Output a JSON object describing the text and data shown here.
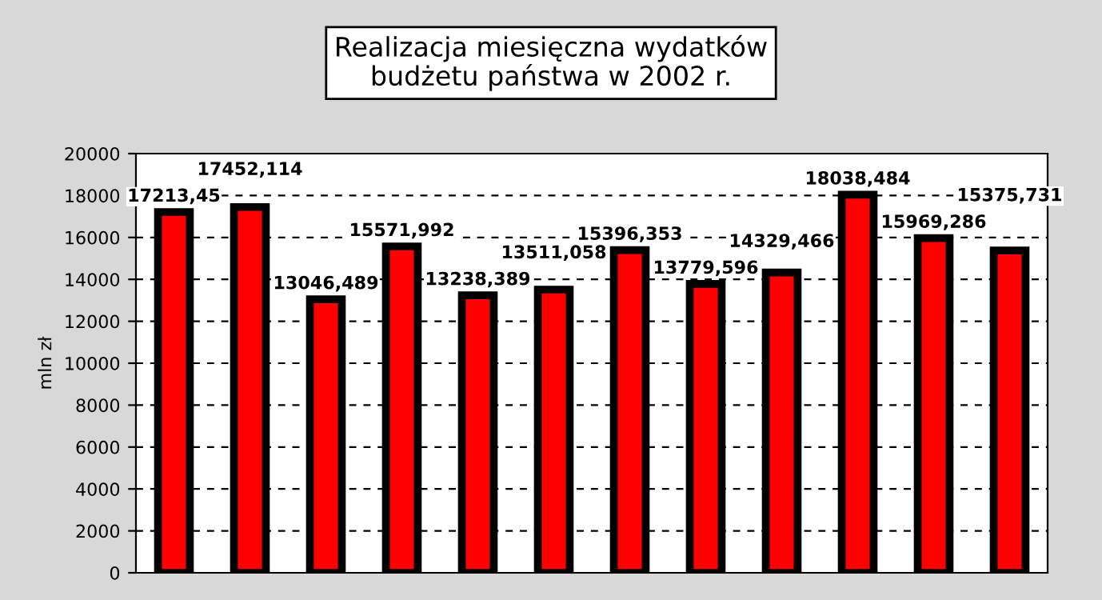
{
  "chart_data": {
    "type": "bar",
    "title": "Realizacja miesięczna wydatków\nbudżetu państwa w 2002 r.",
    "ylabel": "mln zł",
    "categories": [
      null,
      null,
      null,
      null,
      null,
      null,
      null,
      null,
      null,
      null,
      null,
      null
    ],
    "values": [
      17213.45,
      17452.114,
      13046.489,
      15571.992,
      13238.389,
      13511.058,
      15396.353,
      13779.596,
      14329.466,
      18038.484,
      15969.286,
      15375.731
    ],
    "value_labels": [
      "17213,45",
      "17452,114",
      "13046,489",
      "15571,992",
      "13238,389",
      "13511,058",
      "15396,353",
      "13779,596",
      "14329,466",
      "18038,484",
      "15969,286",
      "15375,731"
    ],
    "color": "#ff0000",
    "ylim": [
      0,
      20000
    ],
    "yticks": [
      0,
      2000,
      4000,
      6000,
      8000,
      10000,
      12000,
      14000,
      16000,
      18000,
      20000
    ],
    "grid": "y",
    "legend": false
  }
}
